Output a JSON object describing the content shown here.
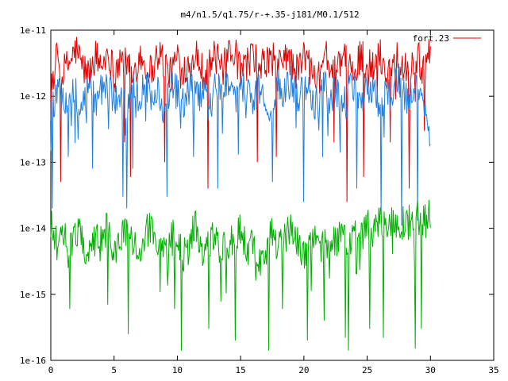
{
  "chart_data": {
    "type": "line",
    "title": "m4/n1.5/q1.75/r-+.35-j181/M0.1/512",
    "xlabel": "",
    "ylabel": "",
    "xlim": [
      0,
      35
    ],
    "ylim": [
      1e-16,
      1e-11
    ],
    "yscale": "log",
    "x_ticks": [
      0,
      5,
      10,
      15,
      20,
      25,
      30,
      35
    ],
    "x_tick_labels": [
      "0",
      "5",
      "10",
      "15",
      "20",
      "25",
      "30",
      "35"
    ],
    "y_ticks": [
      1e-16,
      1e-15,
      1e-14,
      1e-13,
      1e-12,
      1e-11
    ],
    "y_tick_labels": [
      "1e-16",
      "1e-15",
      "1e-14",
      "1e-13",
      "1e-12",
      "1e-11"
    ],
    "grid": false,
    "legend_position": "top-right",
    "series": [
      {
        "name": "fort.23",
        "color": "#e00000",
        "x": [
          0,
          0.5,
          1,
          1.5,
          2,
          2.5,
          3,
          3.5,
          4,
          4.5,
          5,
          5.5,
          6,
          6.5,
          7,
          7.5,
          8,
          8.5,
          9,
          9.5,
          10,
          10.5,
          11,
          11.5,
          12,
          12.5,
          13,
          13.5,
          14,
          14.5,
          15,
          15.5,
          16,
          16.5,
          17,
          17.5,
          18,
          18.5,
          19,
          19.5,
          20,
          20.5,
          21,
          21.5,
          22,
          22.5,
          23,
          23.5,
          24,
          24.5,
          25,
          25.5,
          26,
          26.5,
          27,
          27.5,
          28,
          28.5,
          29,
          29.5,
          30
        ],
        "y": [
          1.8e-12,
          4e-12,
          2.5e-12,
          3.5e-12,
          5.5e-12,
          3e-12,
          2.2e-12,
          4.5e-12,
          3e-12,
          5e-12,
          2.5e-12,
          4e-12,
          3.2e-12,
          2e-12,
          4.8e-12,
          3e-12,
          2.6e-12,
          5e-12,
          3.4e-12,
          2.2e-12,
          4.6e-12,
          2.8e-12,
          3.6e-12,
          5e-12,
          2.5e-12,
          3.2e-12,
          4.4e-12,
          2.6e-12,
          3.8e-12,
          5.2e-12,
          2.4e-12,
          3.4e-12,
          4.8e-12,
          2.6e-12,
          3.6e-12,
          4.2e-12,
          2.8e-12,
          5e-12,
          3.2e-12,
          2.4e-12,
          4.6e-12,
          3e-12,
          2.6e-12,
          4.8e-12,
          3.4e-12,
          2.2e-12,
          4.4e-12,
          3e-12,
          2.4e-12,
          5e-12,
          3.2e-12,
          2.8e-12,
          4.6e-12,
          2.4e-12,
          3.6e-12,
          5e-12,
          2.8e-12,
          3.2e-12,
          4.2e-12,
          2.6e-12,
          5.5e-12
        ],
        "dips": [
          [
            0.8,
            5e-14
          ],
          [
            5.8,
            2e-13
          ],
          [
            6.3,
            6e-14
          ],
          [
            9,
            1e-13
          ],
          [
            12.4,
            4e-14
          ],
          [
            16.3,
            1e-13
          ],
          [
            17.8,
            1.2e-13
          ],
          [
            22.4,
            2e-13
          ],
          [
            23.4,
            2.5e-14
          ],
          [
            24.7,
            6e-14
          ],
          [
            26.8,
            2e-13
          ],
          [
            28.3,
            4e-14
          ],
          [
            29.5,
            3e-13
          ]
        ]
      },
      {
        "name": "",
        "color": "#1e7fe0",
        "x": [
          0,
          0.5,
          1,
          1.5,
          2,
          2.5,
          3,
          3.5,
          4,
          4.5,
          5,
          5.5,
          6,
          6.5,
          7,
          7.5,
          8,
          8.5,
          9,
          9.5,
          10,
          10.5,
          11,
          11.5,
          12,
          12.5,
          13,
          13.5,
          14,
          14.5,
          15,
          15.5,
          16,
          16.5,
          17,
          17.5,
          18,
          18.5,
          19,
          19.5,
          20,
          20.5,
          21,
          21.5,
          22,
          22.5,
          23,
          23.5,
          24,
          24.5,
          25,
          25.5,
          26,
          26.5,
          27,
          27.5,
          28,
          28.5,
          29,
          29.5,
          30
        ],
        "y": [
          6e-13,
          1.2e-12,
          8e-13,
          1.5e-12,
          1.1e-12,
          7e-13,
          1.6e-12,
          9e-13,
          1.3e-12,
          1.8e-12,
          8e-13,
          1.2e-12,
          7e-13,
          1.4e-12,
          1.1e-12,
          1.7e-12,
          9e-13,
          1.3e-12,
          6e-13,
          1.5e-12,
          1.2e-12,
          8e-13,
          1.6e-12,
          1e-12,
          1.3e-12,
          7e-13,
          1.5e-12,
          1.1e-12,
          1.8e-12,
          9e-13,
          1.2e-12,
          1.6e-12,
          8e-13,
          1.4e-12,
          1e-12,
          7e-13,
          1.5e-12,
          1.2e-12,
          1.7e-12,
          9e-13,
          1.3e-12,
          1.1e-12,
          8e-13,
          1.6e-12,
          1e-12,
          1.4e-12,
          7e-13,
          1.2e-12,
          1.5e-12,
          9e-13,
          1.3e-12,
          1.6e-12,
          8e-13,
          1.1e-12,
          1.4e-12,
          1.8e-12,
          9e-13,
          1.2e-12,
          1.6e-12,
          7e-13,
          3e-13
        ],
        "dips": [
          [
            0,
            1.5e-13
          ],
          [
            0.1,
            2e-14
          ],
          [
            1.4,
            1.2e-13
          ],
          [
            3.3,
            8e-14
          ],
          [
            5.7,
            3e-14
          ],
          [
            6.0,
            2e-14
          ],
          [
            6.5,
            8e-14
          ],
          [
            9.2,
            3e-14
          ],
          [
            11.3,
            1.2e-13
          ],
          [
            13.2,
            4e-14
          ],
          [
            14.8,
            1.3e-13
          ],
          [
            17.5,
            5e-14
          ],
          [
            20.0,
            2.5e-14
          ],
          [
            21.5,
            1.2e-13
          ],
          [
            24.2,
            4e-14
          ],
          [
            26.1,
            1.6e-14
          ],
          [
            27.7,
            1.1e-14
          ],
          [
            29.0,
            1.3e-14
          ]
        ]
      },
      {
        "name": "",
        "color": "#00b000",
        "x": [
          0,
          0.5,
          1,
          1.5,
          2,
          2.5,
          3,
          3.5,
          4,
          4.5,
          5,
          5.5,
          6,
          6.5,
          7,
          7.5,
          8,
          8.5,
          9,
          9.5,
          10,
          10.5,
          11,
          11.5,
          12,
          12.5,
          13,
          13.5,
          14,
          14.5,
          15,
          15.5,
          16,
          16.5,
          17,
          17.5,
          18,
          18.5,
          19,
          19.5,
          20,
          20.5,
          21,
          21.5,
          22,
          22.5,
          23,
          23.5,
          24,
          24.5,
          25,
          25.5,
          26,
          26.5,
          27,
          27.5,
          28,
          28.5,
          29,
          29.5,
          30
        ],
        "y": [
          1.2e-14,
          6e-15,
          9e-15,
          5e-15,
          1e-14,
          7e-15,
          4e-15,
          8e-15,
          6e-15,
          1.1e-14,
          5e-15,
          8e-15,
          1.2e-14,
          6e-15,
          4e-15,
          9e-15,
          1.3e-14,
          5e-15,
          7e-15,
          1e-14,
          6e-15,
          4e-15,
          8e-15,
          1.1e-14,
          5e-15,
          7e-15,
          9e-15,
          4e-15,
          8e-15,
          6e-15,
          1e-14,
          5e-15,
          7e-15,
          3e-15,
          6e-15,
          9e-15,
          5e-15,
          8e-15,
          1.1e-14,
          6e-15,
          4e-15,
          7e-15,
          1e-14,
          5e-15,
          8e-15,
          6e-15,
          1.1e-14,
          5e-15,
          9e-15,
          7e-15,
          1.2e-14,
          8e-15,
          1.3e-14,
          1e-14,
          1.4e-14,
          1.1e-14,
          1.5e-14,
          1.2e-14,
          1.6e-14,
          1.3e-14,
          1.8e-14
        ],
        "dips": [
          [
            1.5,
            6e-16
          ],
          [
            4.5,
            7e-16
          ],
          [
            6.1,
            2.5e-16
          ],
          [
            9.8,
            6e-16
          ],
          [
            10.3,
            1.4e-16
          ],
          [
            12.5,
            3e-16
          ],
          [
            14.6,
            2e-16
          ],
          [
            17.2,
            1.4e-16
          ],
          [
            18.3,
            6e-16
          ],
          [
            20.3,
            2e-16
          ],
          [
            21.6,
            4e-16
          ],
          [
            23.3,
            2.2e-16
          ],
          [
            23.5,
            1.4e-16
          ],
          [
            25.2,
            3e-16
          ],
          [
            26.3,
            2.2e-16
          ],
          [
            28.8,
            1.5e-16
          ],
          [
            29.3,
            3e-16
          ]
        ]
      }
    ]
  }
}
